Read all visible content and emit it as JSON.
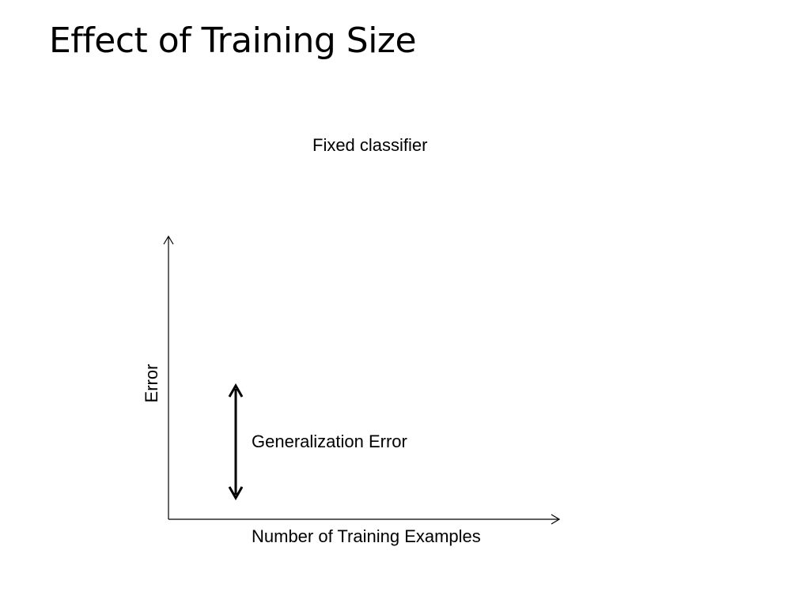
{
  "slide": {
    "title": "Effect of Training Size"
  },
  "diagram": {
    "subtitle": "Fixed classifier",
    "y_axis_label": "Error",
    "x_axis_label": "Number of Training Examples",
    "annotation": "Generalization Error"
  },
  "colors": {
    "axis": "#000000",
    "background": "#ffffff"
  }
}
